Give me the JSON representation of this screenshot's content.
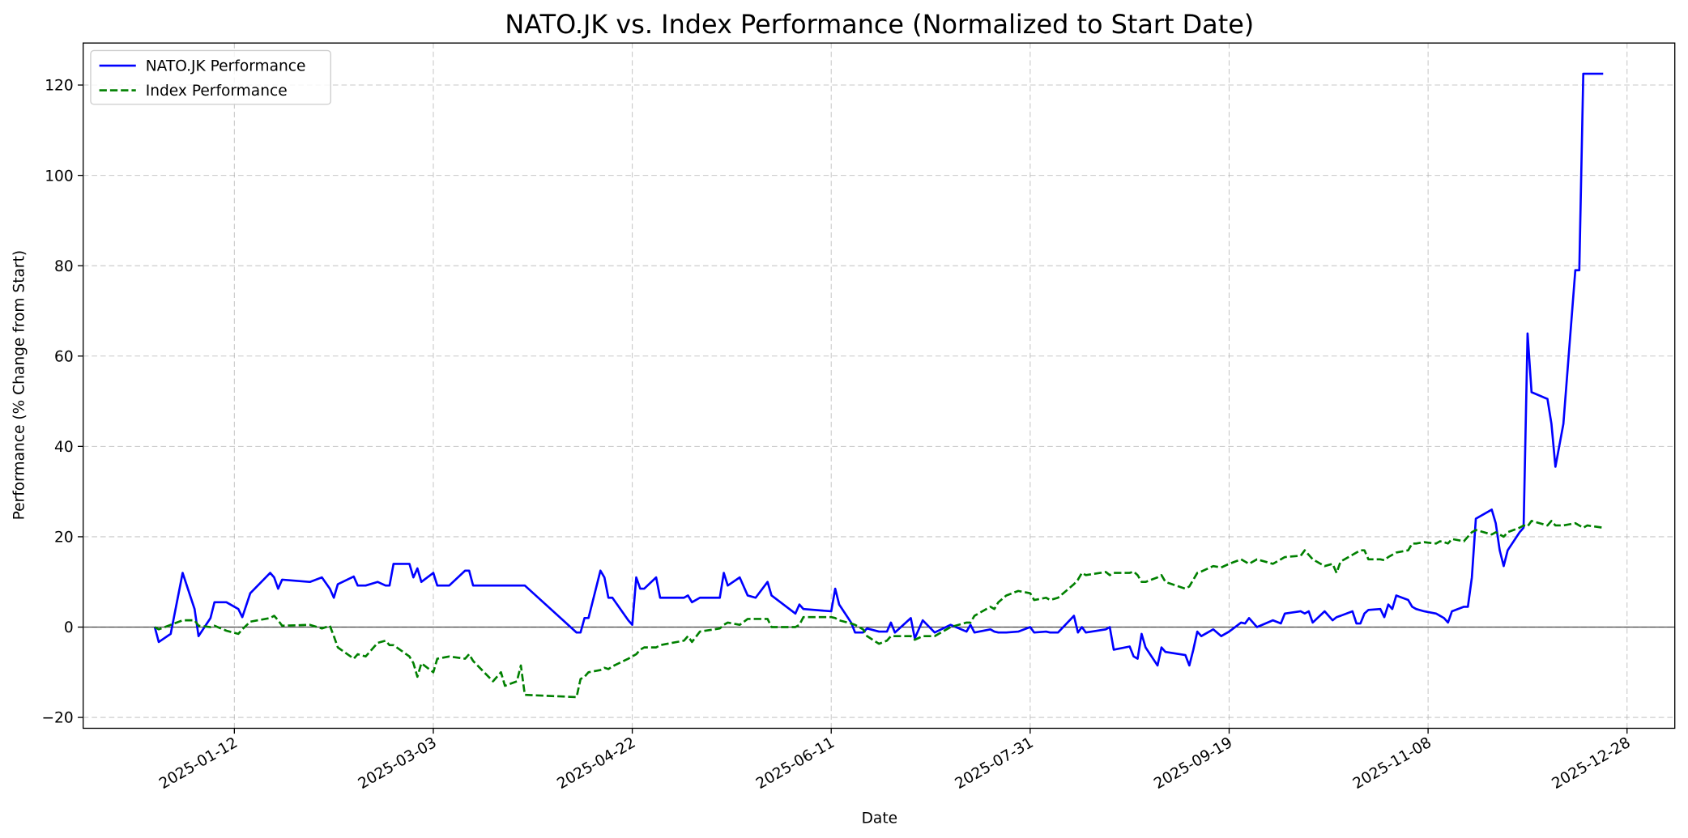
{
  "chart_data": {
    "type": "line",
    "title": "NATO.JK vs. Index Performance (Normalized to Start Date)",
    "xlabel": "Date",
    "ylabel": "Performance (% Change from Start)",
    "x": [
      "2024-12-23",
      "2024-12-24",
      "2024-12-27",
      "2024-12-30",
      "2025-01-02",
      "2025-01-03",
      "2025-01-06",
      "2025-01-07",
      "2025-01-10",
      "2025-01-13",
      "2025-01-14",
      "2025-01-16",
      "2025-01-21",
      "2025-01-22",
      "2025-01-23",
      "2025-01-24",
      "2025-01-31",
      "2025-02-03",
      "2025-02-05",
      "2025-02-06",
      "2025-02-07",
      "2025-02-11",
      "2025-02-12",
      "2025-02-14",
      "2025-02-17",
      "2025-02-19",
      "2025-02-20",
      "2025-02-21",
      "2025-02-25",
      "2025-02-26",
      "2025-02-27",
      "2025-02-28",
      "2025-03-03",
      "2025-03-04",
      "2025-03-07",
      "2025-03-11",
      "2025-03-12",
      "2025-03-13",
      "2025-03-18",
      "2025-03-20",
      "2025-03-21",
      "2025-03-24",
      "2025-03-25",
      "2025-03-26",
      "2025-04-08",
      "2025-04-09",
      "2025-04-10",
      "2025-04-11",
      "2025-04-14",
      "2025-04-15",
      "2025-04-16",
      "2025-04-17",
      "2025-04-21",
      "2025-04-22",
      "2025-04-23",
      "2025-04-24",
      "2025-04-25",
      "2025-04-28",
      "2025-04-29",
      "2025-05-05",
      "2025-05-06",
      "2025-05-07",
      "2025-05-09",
      "2025-05-14",
      "2025-05-15",
      "2025-05-16",
      "2025-05-19",
      "2025-05-21",
      "2025-05-23",
      "2025-05-26",
      "2025-05-27",
      "2025-06-02",
      "2025-06-03",
      "2025-06-04",
      "2025-06-11",
      "2025-06-12",
      "2025-06-13",
      "2025-06-16",
      "2025-06-17",
      "2025-06-19",
      "2025-06-20",
      "2025-06-23",
      "2025-06-25",
      "2025-06-26",
      "2025-06-27",
      "2025-07-01",
      "2025-07-02",
      "2025-07-04",
      "2025-07-07",
      "2025-07-11",
      "2025-07-15",
      "2025-07-16",
      "2025-07-17",
      "2025-07-21",
      "2025-07-22",
      "2025-07-23",
      "2025-07-25",
      "2025-07-28",
      "2025-07-31",
      "2025-08-01",
      "2025-08-04",
      "2025-08-05",
      "2025-08-07",
      "2025-08-11",
      "2025-08-12",
      "2025-08-13",
      "2025-08-14",
      "2025-08-19",
      "2025-08-20",
      "2025-08-21",
      "2025-08-25",
      "2025-08-26",
      "2025-08-27",
      "2025-08-28",
      "2025-08-29",
      "2025-09-01",
      "2025-09-02",
      "2025-09-03",
      "2025-09-08",
      "2025-09-09",
      "2025-09-10",
      "2025-09-11",
      "2025-09-12",
      "2025-09-15",
      "2025-09-17",
      "2025-09-19",
      "2025-09-22",
      "2025-09-23",
      "2025-09-24",
      "2025-09-26",
      "2025-09-30",
      "2025-10-02",
      "2025-10-03",
      "2025-10-07",
      "2025-10-08",
      "2025-10-09",
      "2025-10-10",
      "2025-10-13",
      "2025-10-15",
      "2025-10-16",
      "2025-10-17",
      "2025-10-20",
      "2025-10-21",
      "2025-10-22",
      "2025-10-23",
      "2025-10-24",
      "2025-10-27",
      "2025-10-28",
      "2025-10-29",
      "2025-10-30",
      "2025-10-31",
      "2025-11-03",
      "2025-11-04",
      "2025-11-05",
      "2025-11-07",
      "2025-11-10",
      "2025-11-11",
      "2025-11-12",
      "2025-11-13",
      "2025-11-14",
      "2025-11-17",
      "2025-11-18",
      "2025-11-19",
      "2025-11-20",
      "2025-11-24",
      "2025-11-25",
      "2025-11-26",
      "2025-11-27",
      "2025-11-28",
      "2025-12-01",
      "2025-12-02",
      "2025-12-03",
      "2025-12-04",
      "2025-12-08",
      "2025-12-09",
      "2025-12-10",
      "2025-12-12",
      "2025-12-15",
      "2025-12-16",
      "2025-12-17",
      "2025-12-18",
      "2025-12-22"
    ],
    "series": [
      {
        "name": "NATO.JK Performance",
        "color": "#0000ff",
        "dash": false,
        "values": [
          0,
          -3.3,
          -1.5,
          12,
          4,
          -2,
          2,
          5.5,
          5.5,
          4,
          2.2,
          7.5,
          12,
          11,
          8.5,
          10.5,
          10,
          11,
          8.5,
          6.5,
          9.5,
          11.2,
          9.2,
          9.2,
          10,
          9.2,
          9.2,
          14,
          14,
          11,
          13,
          10,
          12,
          9.2,
          9.2,
          12.5,
          12.5,
          9.2,
          9.2,
          9.2,
          9.2,
          9.2,
          9.2,
          9.2,
          -1.2,
          -1.2,
          2,
          2,
          12.5,
          11,
          6.5,
          6.5,
          1.5,
          0.5,
          11,
          8.5,
          8.5,
          11,
          6.5,
          6.5,
          7,
          5.5,
          6.5,
          6.5,
          12,
          9.2,
          11,
          7,
          6.5,
          10,
          7,
          3,
          5,
          4,
          3.5,
          8.5,
          5,
          1,
          -1.2,
          -1.2,
          -0.3,
          -1,
          -1,
          1,
          -1.2,
          2,
          -2.5,
          1.5,
          -1.2,
          0.5,
          -1,
          0.5,
          -1.2,
          -0.5,
          -1,
          -1.2,
          -1.2,
          -1,
          0,
          -1.2,
          -1,
          -1.2,
          -1.2,
          2.5,
          -1.2,
          0,
          -1.2,
          -0.5,
          0,
          -5,
          -4.3,
          -6.5,
          -7,
          -1.5,
          -4.5,
          -8.5,
          -4.5,
          -5.5,
          -6.2,
          -8.5,
          -5,
          -1,
          -2,
          -0.5,
          -2,
          -1,
          1,
          0.8,
          2,
          0,
          1.5,
          0.8,
          3,
          3.5,
          3,
          3.5,
          1,
          3.5,
          1.5,
          2.2,
          2.5,
          3.5,
          0.8,
          0.8,
          3,
          3.8,
          4,
          2.2,
          5,
          4,
          7,
          6,
          4.5,
          4,
          3.5,
          3,
          2.5,
          2,
          1,
          3.5,
          4.5,
          4.5,
          11,
          24,
          26,
          23,
          17,
          13.5,
          17,
          21,
          22,
          65,
          52,
          50.5,
          45,
          35.5,
          45,
          79,
          79,
          122.5,
          122.5,
          122.5
        ]
      },
      {
        "name": "Index Performance",
        "color": "#008000",
        "dash": true,
        "values": [
          0,
          -0.5,
          0.5,
          1.5,
          1.5,
          0.3,
          0,
          0.3,
          -0.8,
          -1.5,
          -0.5,
          1.2,
          2,
          2.5,
          1.5,
          0.3,
          0.5,
          -0.3,
          0.3,
          -2,
          -4.5,
          -7,
          -6,
          -6.5,
          -3.5,
          -3,
          -4,
          -4,
          -6.5,
          -8,
          -11,
          -8,
          -10,
          -7,
          -6.5,
          -7,
          -6,
          -7.5,
          -12,
          -10,
          -13,
          -12,
          -8.5,
          -15,
          -15.5,
          -11.5,
          -11,
          -10,
          -9.5,
          -9,
          -9.3,
          -8.7,
          -7,
          -6.5,
          -6,
          -5,
          -4.5,
          -4.5,
          -4,
          -3,
          -2,
          -3.3,
          -1,
          -0.3,
          0.5,
          1,
          0.5,
          1.8,
          1.8,
          1.8,
          0,
          0,
          0.5,
          2.2,
          2.2,
          2,
          1.5,
          0.8,
          0.5,
          -0.5,
          -2,
          -3.7,
          -3,
          -2,
          -2,
          -2,
          -2.8,
          -2,
          -2,
          0,
          1,
          1,
          2.5,
          4.5,
          4,
          5.5,
          7,
          8,
          7.5,
          6,
          6.5,
          6,
          6.5,
          9.5,
          10.5,
          12,
          11.5,
          12.2,
          11.5,
          12,
          12,
          12.3,
          11.5,
          10,
          10,
          11,
          11.5,
          10,
          8.5,
          9,
          10.5,
          12,
          12.3,
          13.5,
          13.2,
          14,
          15,
          14.5,
          14,
          15,
          14,
          15,
          15.5,
          15.8,
          17,
          16,
          15,
          13.5,
          14,
          12,
          14.5,
          16,
          16.5,
          17,
          17,
          15,
          15,
          14.8,
          15.5,
          16,
          16.5,
          17,
          18.5,
          18.5,
          18.8,
          18.5,
          19,
          18.8,
          18.5,
          19.5,
          19,
          20,
          21,
          21.5,
          20.5,
          21,
          20.5,
          20,
          21,
          22,
          22.5,
          22.3,
          23.5,
          22.5,
          23.5,
          22.5,
          22.5,
          23,
          22.5,
          22,
          22.5,
          22
        ]
      }
    ],
    "xlim": [
      "2024-12-05",
      "2026-01-09"
    ],
    "xticks": [
      "2025-01-12",
      "2025-03-03",
      "2025-04-22",
      "2025-06-11",
      "2025-07-31",
      "2025-09-19",
      "2025-11-08",
      "2025-12-28"
    ],
    "ylim": [
      -22.4,
      129.3
    ],
    "yticks": [
      {
        "value": -20,
        "label": "−20"
      },
      0,
      20,
      40,
      60,
      80,
      100,
      120
    ],
    "reference_line": 0,
    "grid": true,
    "legend": "upper left"
  }
}
